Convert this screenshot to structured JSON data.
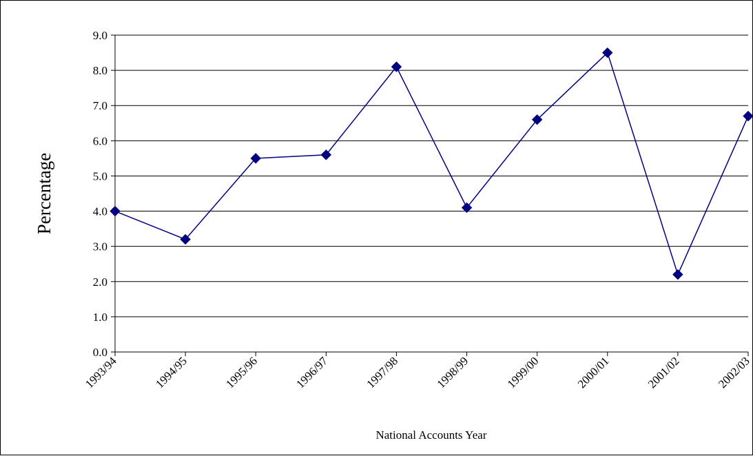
{
  "chart_data": {
    "type": "line",
    "title": "",
    "xlabel": "National Accounts Year",
    "ylabel": "Percentage",
    "categories": [
      "1993/94",
      "1994/95",
      "1995/96",
      "1996/97",
      "1997/98",
      "1998/99",
      "1999/00",
      "2000/01",
      "2001/02",
      "2002/03"
    ],
    "series": [
      {
        "values": [
          4.0,
          3.2,
          5.5,
          5.6,
          8.1,
          4.1,
          6.6,
          8.5,
          2.2,
          6.7
        ],
        "color": "#000080",
        "marker": "diamond"
      }
    ],
    "ylim": [
      0,
      9
    ],
    "ytick_step": 1,
    "ytick_decimals": 1,
    "grid": true,
    "legend": "none"
  }
}
